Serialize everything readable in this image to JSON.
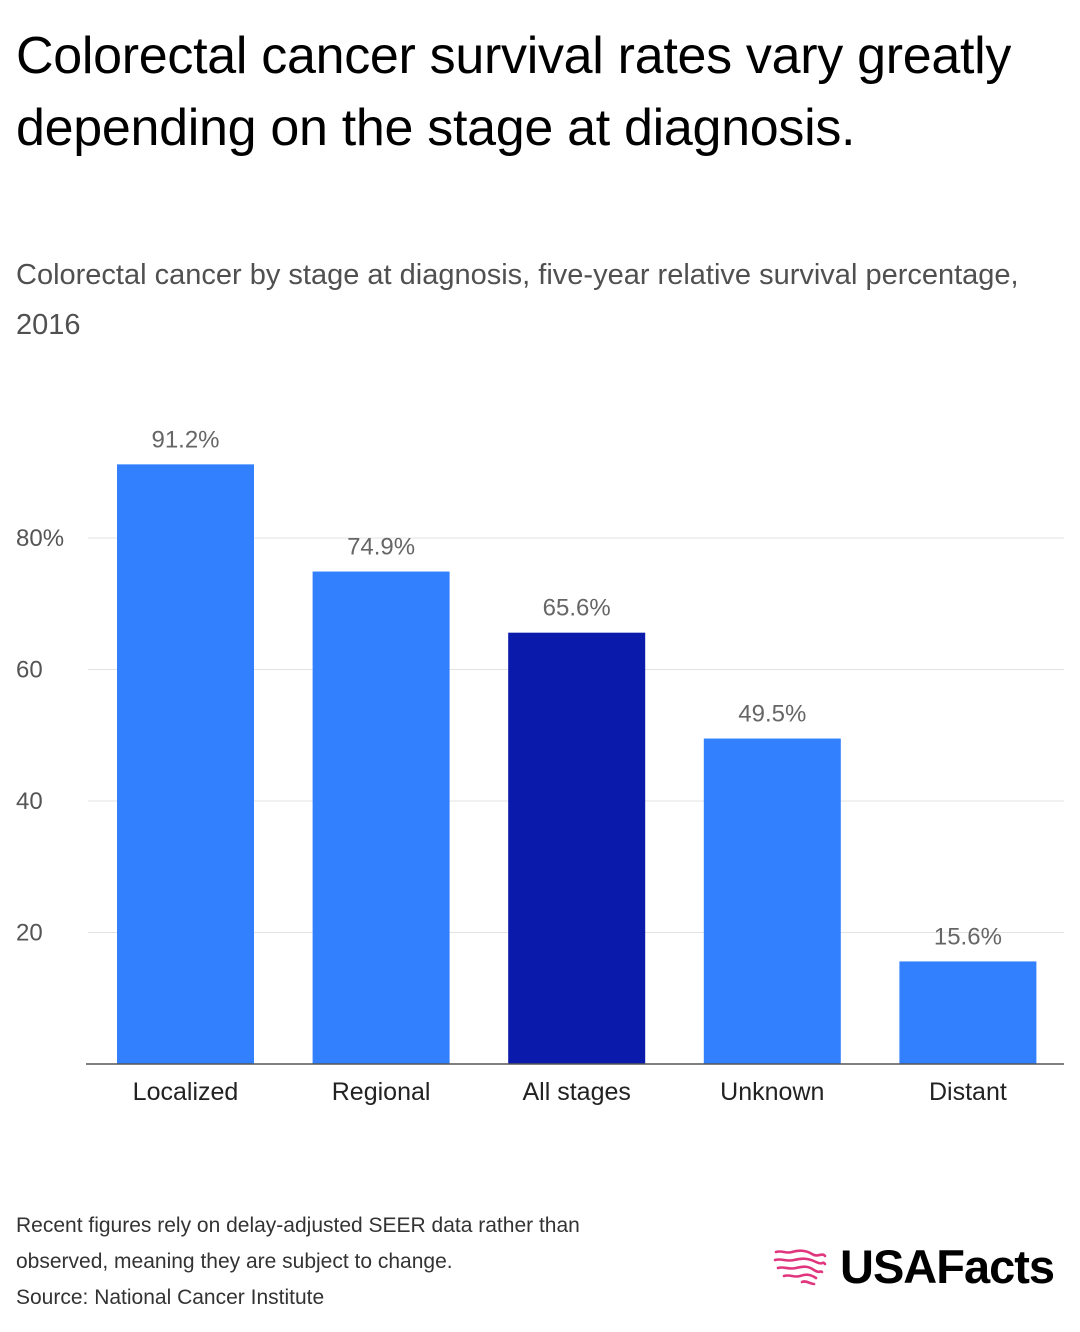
{
  "title": "Colorectal cancer survival rates vary greatly depending on the stage at diagnosis.",
  "subtitle": "Colorectal cancer by stage at diagnosis, five-year relative survival percentage, 2016",
  "footnote": {
    "line1": "Recent figures rely on delay-adjusted SEER data rather than",
    "line2": "observed, meaning they are subject to change.",
    "source": "Source: National Cancer Institute"
  },
  "logo": {
    "text": "USAFacts",
    "icon": "usa-map-stripes-icon",
    "icon_color": "#e0367e"
  },
  "colors": {
    "bar": "#3380ff",
    "highlight": "#0a1aab",
    "grid": "#e3e3e3",
    "axis": "#555555"
  },
  "chart_data": {
    "type": "bar",
    "categories": [
      "Localized",
      "Regional",
      "All stages",
      "Unknown",
      "Distant"
    ],
    "values": [
      91.2,
      74.9,
      65.6,
      49.5,
      15.6
    ],
    "data_labels": [
      "91.2%",
      "74.9%",
      "65.6%",
      "49.5%",
      "15.6%"
    ],
    "highlight_index": 2,
    "yticks": [
      20,
      40,
      60,
      80
    ],
    "ytick_labels": [
      "20",
      "40",
      "60",
      "80%"
    ],
    "ylim": [
      0,
      95
    ],
    "grid": true,
    "xlabel": "",
    "ylabel": ""
  }
}
